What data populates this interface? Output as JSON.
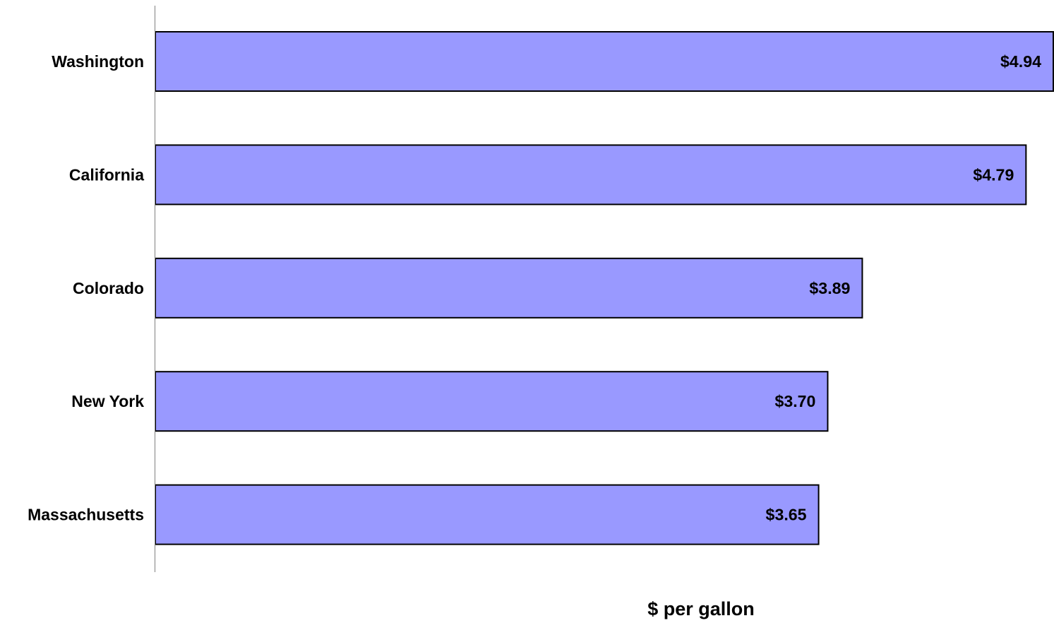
{
  "chart_data": {
    "type": "bar",
    "orientation": "horizontal",
    "categories": [
      "Washington",
      "California",
      "Colorado",
      "New York",
      "Massachusetts"
    ],
    "values": [
      4.94,
      4.79,
      3.89,
      3.7,
      3.65
    ],
    "value_labels": [
      "$4.94",
      "$4.79",
      "$3.89",
      "$3.70",
      "$3.65"
    ],
    "xlabel": "$ per gallon",
    "ylabel": "",
    "title": "",
    "xlim": [
      0,
      4.94
    ],
    "grid": false,
    "legend": "none",
    "colors": {
      "bar_fill": "#9999ff",
      "bar_stroke": "#000000",
      "axis": "#808080"
    }
  }
}
